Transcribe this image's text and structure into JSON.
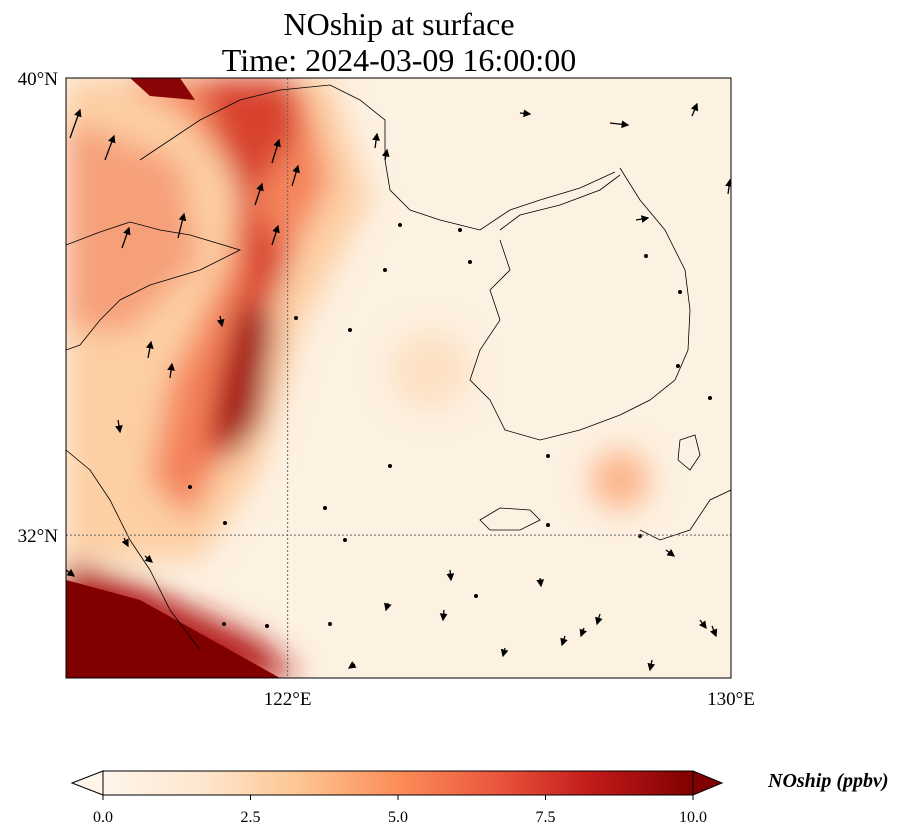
{
  "title": {
    "line1": "NOship at surface",
    "line2": "Time: 2024-03-09 16:00:00"
  },
  "map": {
    "lon_range": [
      118,
      130
    ],
    "lat_range": [
      29.5,
      40
    ],
    "gridline_lon": 122,
    "gridline_lat": 32
  },
  "axes": {
    "lat_ticks": [
      {
        "value": 40,
        "label": "40°N"
      },
      {
        "value": 32,
        "label": "32°N"
      }
    ],
    "lon_ticks": [
      {
        "value": 122,
        "label": "122°E"
      },
      {
        "value": 130,
        "label": "130°E"
      }
    ]
  },
  "colorbar": {
    "label": "NOship (ppbv)",
    "min": 0,
    "max": 10,
    "colors": [
      "#fff5eb",
      "#fdd9b4",
      "#fdaf7f",
      "#f9815e",
      "#e4473c",
      "#b51616",
      "#7f0000"
    ],
    "ticks": [
      {
        "value": 0,
        "label": "0.0"
      },
      {
        "value": 2.5,
        "label": "2.5"
      },
      {
        "value": 5,
        "label": "5.0"
      },
      {
        "value": 7.5,
        "label": "7.5"
      },
      {
        "value": 10,
        "label": "10.0"
      }
    ]
  }
}
